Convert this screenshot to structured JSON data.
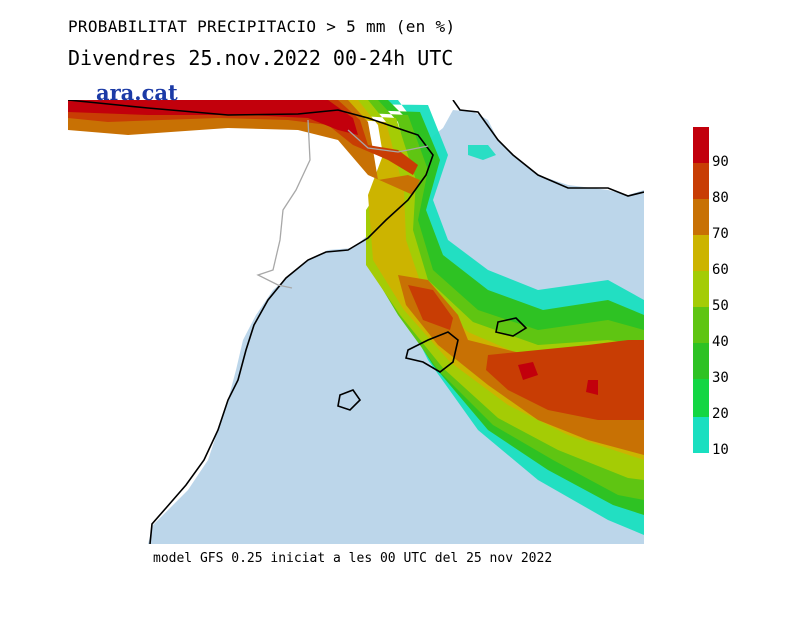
{
  "title": "PROBABILITAT PRECIPITACIO > 5 mm (en %)",
  "subtitle": "Divendres  25.nov.2022 00-24h UTC",
  "logo_text": "ara.cat",
  "footer": "model GFS 0.25 iniciat a les 00 UTC del 25 nov 2022",
  "colors": {
    "sea": "#bcd6ea",
    "land": "#ffffff",
    "coast": "#000000",
    "border": "#a8a8a8"
  },
  "legend": {
    "labels": [
      "90",
      "80",
      "70",
      "60",
      "50",
      "40",
      "30",
      "20",
      "10"
    ],
    "colors": [
      "#c2000c",
      "#c83d04",
      "#c87104",
      "#ccb400",
      "#a4cc05",
      "#5fc512",
      "#2ec223",
      "#13d643",
      "#19dfc0"
    ]
  }
}
